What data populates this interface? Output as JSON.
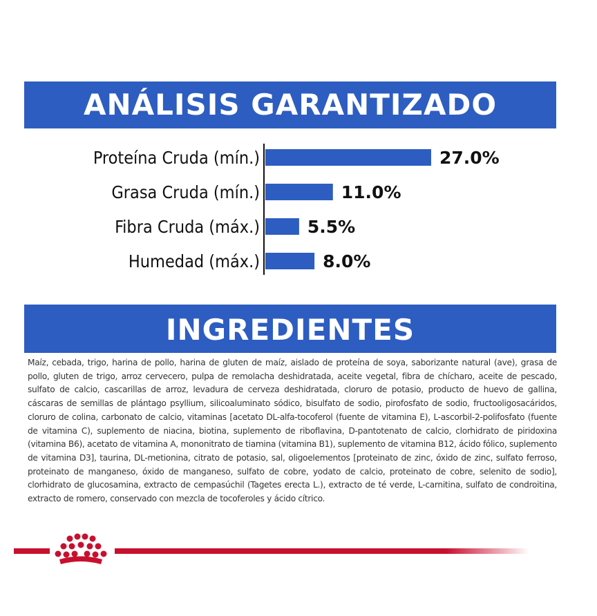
{
  "colors": {
    "accent_blue": "#2d5dc1",
    "brand_red": "#c8102e",
    "text": "#111111"
  },
  "banners": {
    "analysis_title": "ANÁLISIS GARANTIZADO",
    "ingredients_title": "INGREDIENTES"
  },
  "chart_data": {
    "type": "bar",
    "orientation": "horizontal",
    "categories": [
      "Proteína Cruda (mín.)",
      "Grasa Cruda (mín.)",
      "Fibra Cruda (máx.)",
      "Humedad (máx.)"
    ],
    "values": [
      27.0,
      11.0,
      5.5,
      8.0
    ],
    "value_labels": [
      "27.0%",
      "11.0%",
      "5.5%",
      "8.0%"
    ],
    "unit": "%",
    "xlim": [
      0,
      27.0
    ],
    "grid": false,
    "legend": "none",
    "title": "ANÁLISIS GARANTIZADO"
  },
  "ingredients_text": "Maíz, cebada, trigo, harina de pollo, harina de gluten de maíz, aislado de proteína de soya, saborizante natural (ave), grasa de pollo, gluten de trigo, arroz cervecero, pulpa de remolacha deshidratada, aceite vegetal, fibra de chícharo, aceite de pescado, sulfato de calcio, cascarillas de arroz, levadura de cerveza deshidratada, cloruro de potasio, producto de huevo de gallina, cáscaras de semillas de plántago psyllium, silicoaluminato sódico, bisulfato de sodio, pirofosfato de sodio, fructooligosacáridos, cloruro de colina, carbonato de calcio, vitaminas [acetato DL-alfa-tocoferol (fuente de vitamina E), L-ascorbil-2-polifosfato (fuente de vitamina C), suplemento de niacina, biotina, suplemento de riboflavina, D-pantotenato de calcio, clorhidrato de piridoxina (vitamina B6), acetato de vitamina A, mononitrato de tiamina (vitamina B1), suplemento de vitamina B12, ácido fólico, suplemento de vitamina D3], taurina, DL-metionina, citrato de potasio, sal, oligoelementos [proteinato de zinc, óxido de zinc, sulfato ferroso, proteinato de manganeso, óxido de manganeso, sulfato de cobre, yodato de calcio, proteinato de cobre, selenito de sodio], clorhidrato de glucosamina, extracto de cempasúchil (Tagetes erecta L.), extracto de té verde, L-carnitina, sulfato de condroitina, extracto de romero, conservado con mezcla de tocoferoles y ácido cítrico.",
  "footer": {
    "logo_icon": "royal-canin-crown-icon"
  }
}
